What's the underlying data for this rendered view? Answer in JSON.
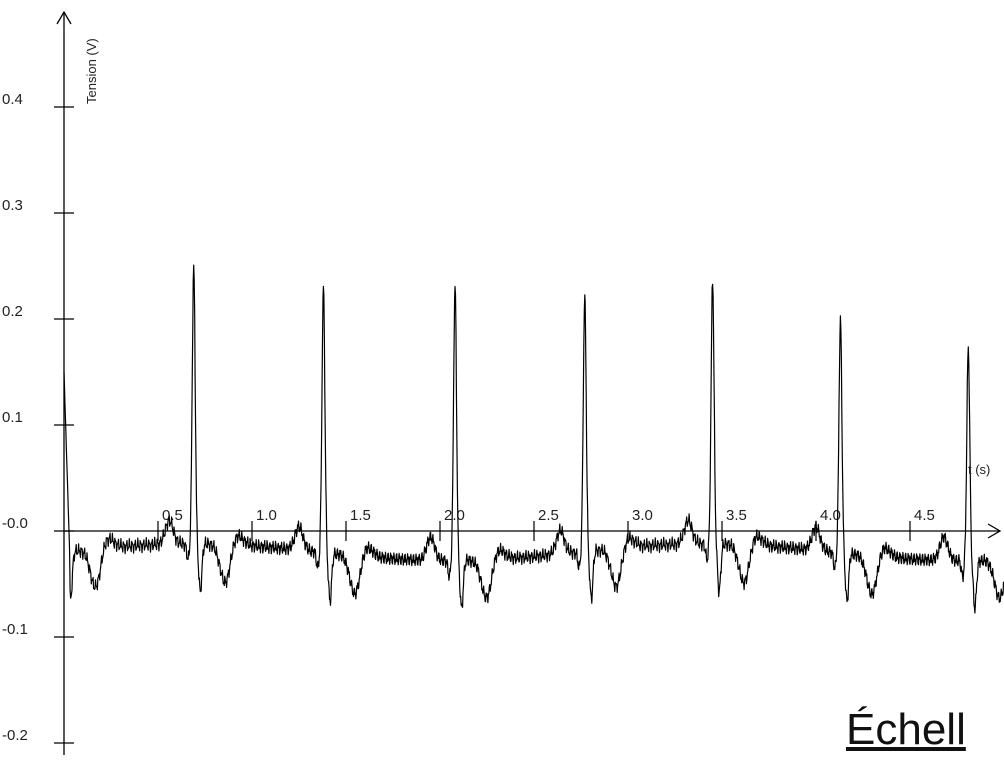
{
  "chart_data": {
    "type": "line",
    "xlabel": "t (s)",
    "ylabel": "Tension (V)",
    "xlim": [
      0,
      5.0
    ],
    "ylim": [
      -0.23,
      0.48
    ],
    "x_ticks": [
      0.5,
      1.0,
      1.5,
      2.0,
      2.5,
      3.0,
      3.5,
      4.0,
      4.5
    ],
    "x_tick_labels": [
      "0.5",
      "1.0",
      "1.5",
      "2.0",
      "2.5",
      "3.0",
      "3.5",
      "4.0",
      "4.5"
    ],
    "y_ticks": [
      -0.2,
      -0.1,
      0.0,
      0.1,
      0.2,
      0.3,
      0.4
    ],
    "y_tick_labels": [
      "-0.2",
      "-0.1",
      "-0.0",
      "0.1",
      "0.2",
      "0.3",
      "0.4"
    ],
    "grid": false,
    "line_color": "#000000",
    "series": [
      {
        "peaks": [
          {
            "t": 0.0,
            "v": 0.15
          },
          {
            "t": 0.69,
            "v": 0.26
          },
          {
            "t": 1.38,
            "v": 0.25
          },
          {
            "t": 2.08,
            "v": 0.26
          },
          {
            "t": 2.77,
            "v": 0.24
          },
          {
            "t": 3.45,
            "v": 0.25
          },
          {
            "t": 4.13,
            "v": 0.22
          },
          {
            "t": 4.81,
            "v": 0.2
          }
        ],
        "baseline_v": -0.02,
        "dip_v": -0.06
      }
    ]
  },
  "caption": "Échell"
}
